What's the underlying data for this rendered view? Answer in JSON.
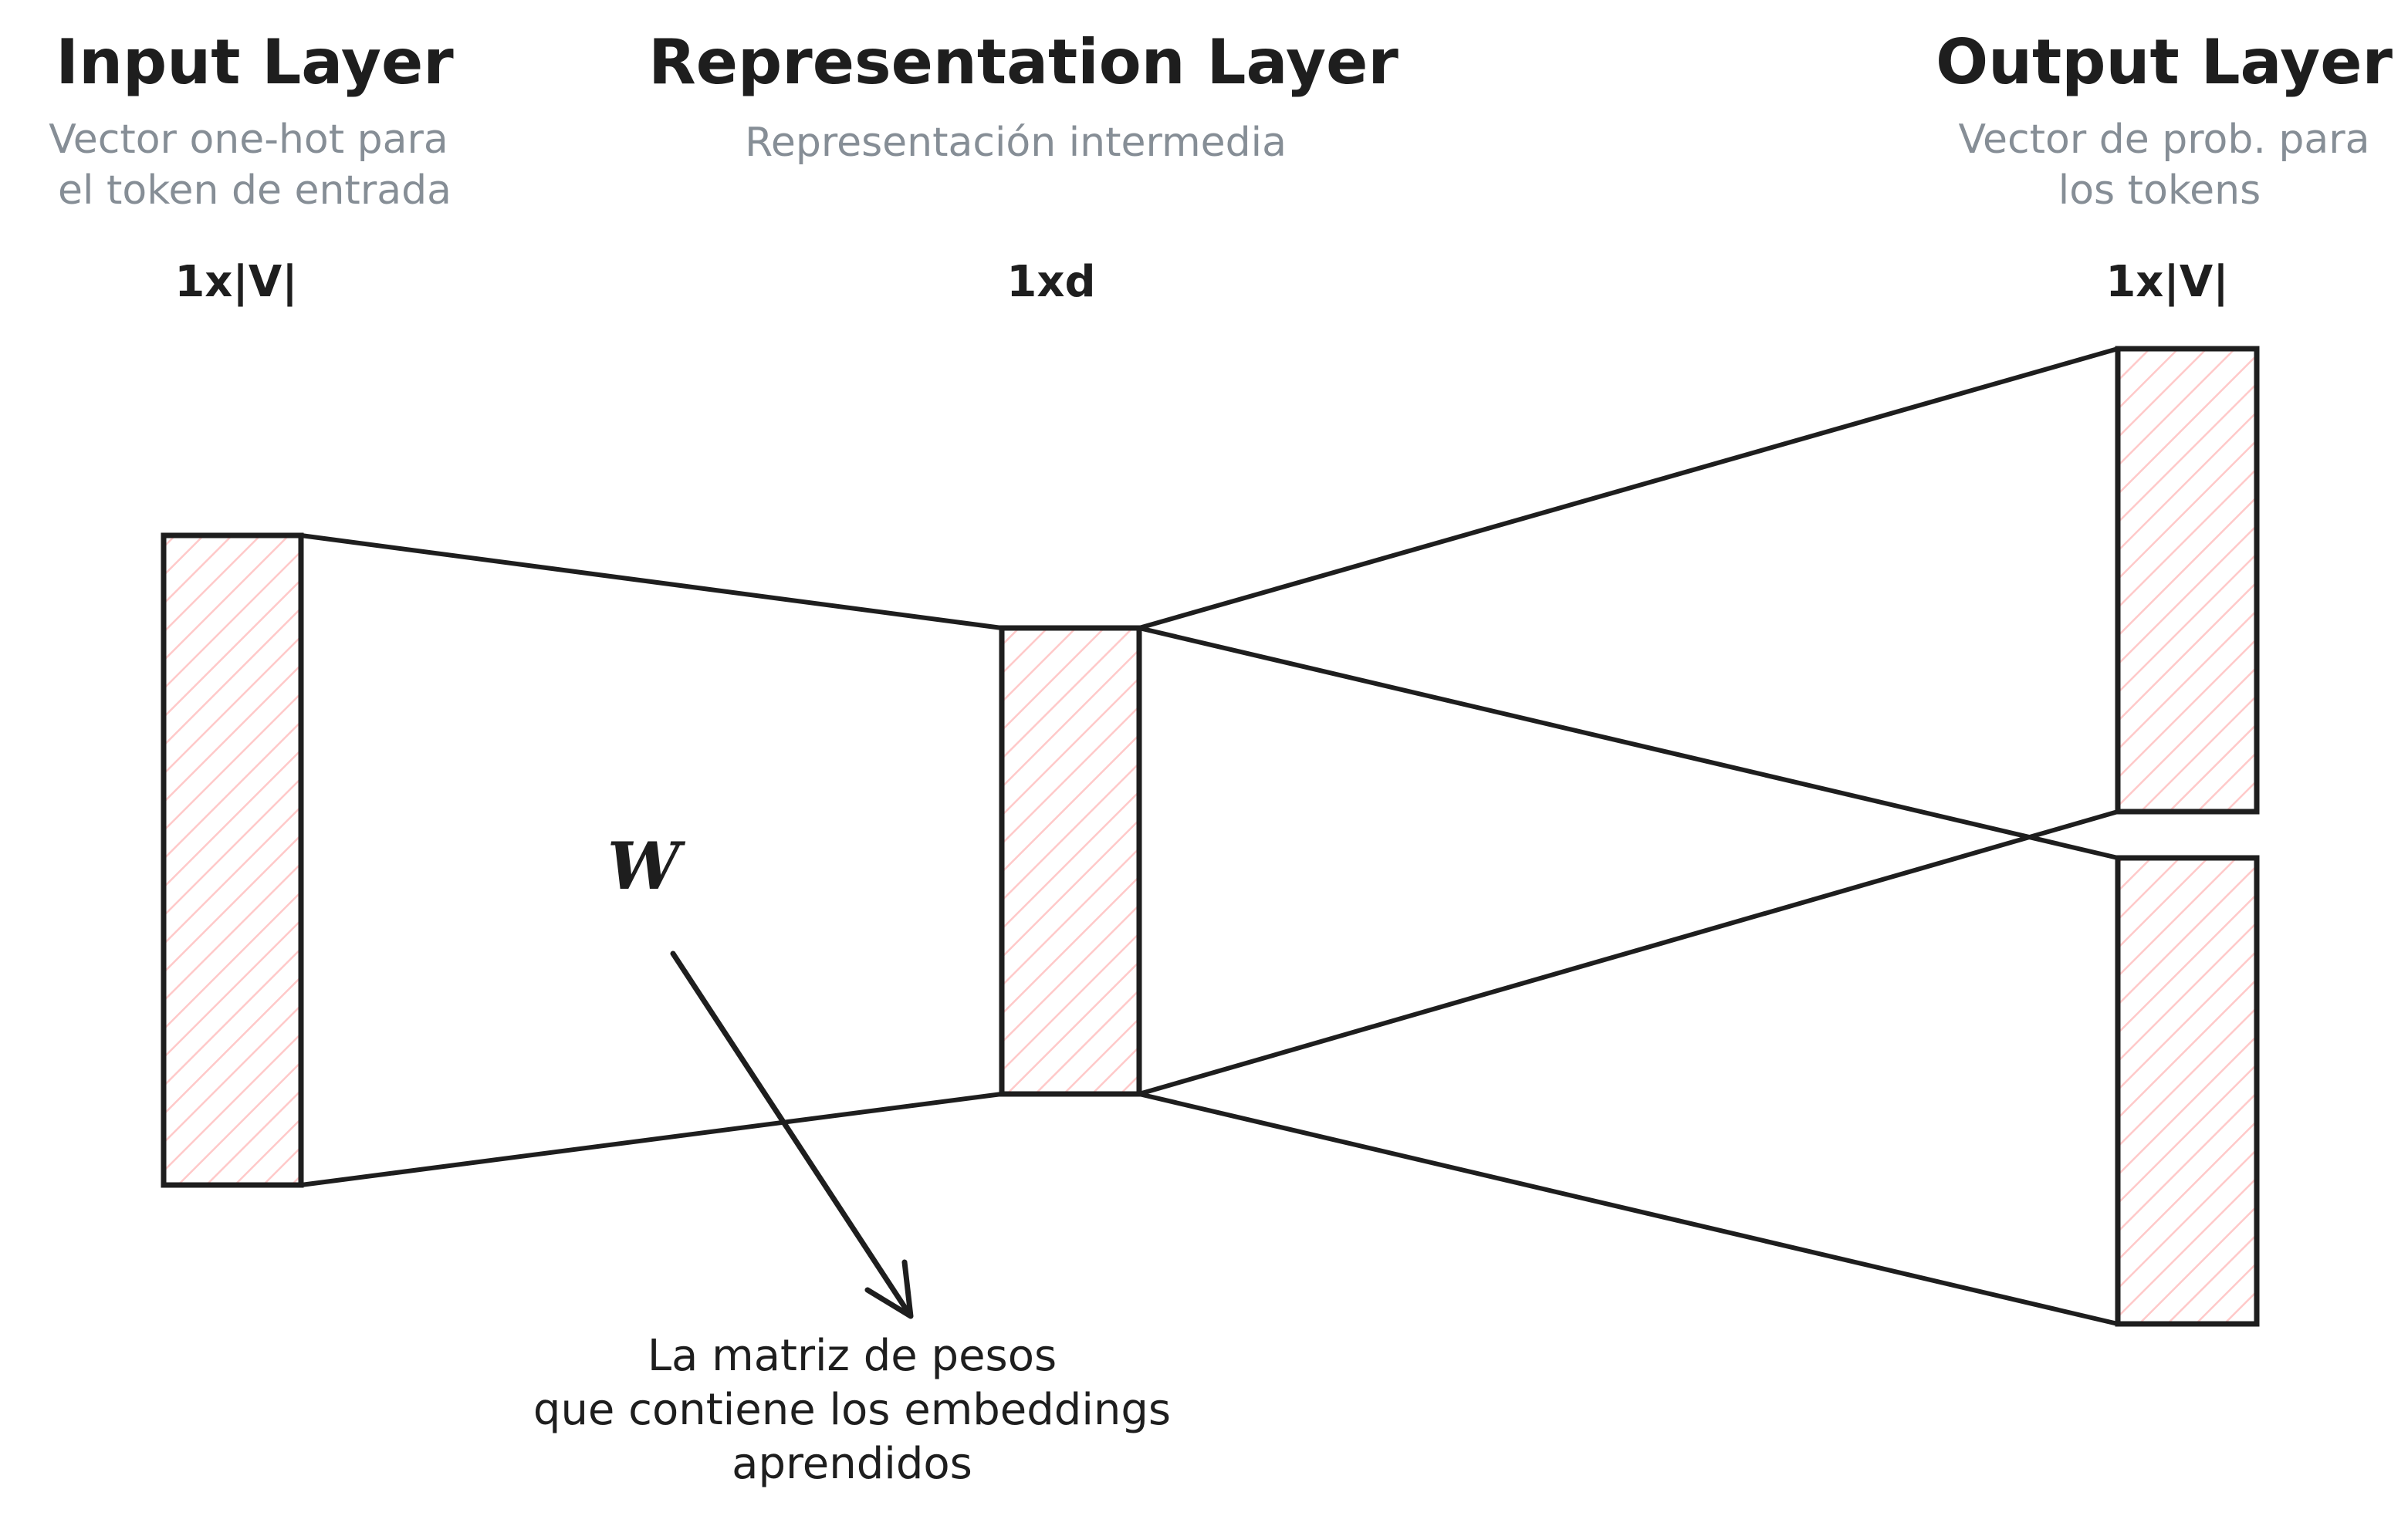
{
  "input_layer": {
    "title": "Input Layer",
    "subtitle_line1": "Vector one-hot para",
    "subtitle_line2": "el token de entrada",
    "dimension": "1x|V|"
  },
  "representation_layer": {
    "title": "Representation Layer",
    "subtitle": "Representación intermedia",
    "dimension": "1xd"
  },
  "output_layer": {
    "title": "Output Layer",
    "subtitle_line1": "Vector de prob. para",
    "subtitle_line2": "los tokens",
    "dimension": "1x|V|"
  },
  "weights": {
    "label": "W",
    "note_line1": "La matriz de pesos",
    "note_line2": "que contiene los embeddings",
    "note_line3": "aprendidos"
  },
  "colors": {
    "stroke": "#1e1e1e",
    "hatch": "#ffc9c9",
    "subtitle": "#868e96"
  }
}
